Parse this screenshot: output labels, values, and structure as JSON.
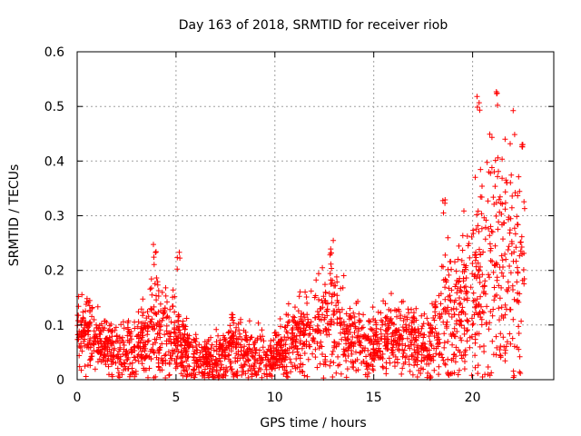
{
  "chart_data": {
    "type": "scatter",
    "title": "Day 163 of 2018, SRMTID for receiver riob",
    "xlabel": "GPS time / hours",
    "ylabel": "SRMTID / TECUs",
    "xlim": [
      0,
      24.5
    ],
    "ylim": [
      0,
      0.6
    ],
    "x_ticks": [
      "0",
      "5",
      "10",
      "15",
      "20"
    ],
    "y_ticks": [
      "0",
      "0.1",
      "0.2",
      "0.3",
      "0.4",
      "0.5",
      "0.6"
    ],
    "grid": true,
    "marker": "+",
    "series_color": "#ff0000",
    "x_range_of_points": [
      0,
      23.0
    ],
    "approx_envelope": [
      {
        "t": 0.0,
        "median": 0.08,
        "spread": 0.05
      },
      {
        "t": 0.5,
        "median": 0.09,
        "spread": 0.06
      },
      {
        "t": 1.0,
        "median": 0.07,
        "spread": 0.04
      },
      {
        "t": 2.0,
        "median": 0.05,
        "spread": 0.04
      },
      {
        "t": 3.0,
        "median": 0.06,
        "spread": 0.05
      },
      {
        "t": 4.0,
        "median": 0.09,
        "spread": 0.08
      },
      {
        "t": 5.0,
        "median": 0.08,
        "spread": 0.07
      },
      {
        "t": 6.0,
        "median": 0.04,
        "spread": 0.03
      },
      {
        "t": 7.0,
        "median": 0.035,
        "spread": 0.03
      },
      {
        "t": 8.0,
        "median": 0.06,
        "spread": 0.05
      },
      {
        "t": 9.0,
        "median": 0.04,
        "spread": 0.04
      },
      {
        "t": 10.0,
        "median": 0.04,
        "spread": 0.04
      },
      {
        "t": 11.0,
        "median": 0.07,
        "spread": 0.05
      },
      {
        "t": 12.0,
        "median": 0.09,
        "spread": 0.06
      },
      {
        "t": 13.0,
        "median": 0.13,
        "spread": 0.1
      },
      {
        "t": 14.0,
        "median": 0.08,
        "spread": 0.05
      },
      {
        "t": 15.0,
        "median": 0.06,
        "spread": 0.05
      },
      {
        "t": 16.0,
        "median": 0.08,
        "spread": 0.05
      },
      {
        "t": 17.0,
        "median": 0.07,
        "spread": 0.05
      },
      {
        "t": 18.0,
        "median": 0.06,
        "spread": 0.05
      },
      {
        "t": 19.0,
        "median": 0.12,
        "spread": 0.1
      },
      {
        "t": 20.0,
        "median": 0.14,
        "spread": 0.12
      },
      {
        "t": 21.0,
        "median": 0.2,
        "spread": 0.18
      },
      {
        "t": 22.0,
        "median": 0.22,
        "spread": 0.2
      },
      {
        "t": 23.0,
        "median": 0.2,
        "spread": 0.18
      }
    ],
    "peaks": [
      {
        "x": 4.0,
        "y": 0.26
      },
      {
        "x": 5.2,
        "y": 0.24
      },
      {
        "x": 13.0,
        "y": 0.25
      },
      {
        "x": 18.8,
        "y": 0.34
      },
      {
        "x": 20.6,
        "y": 0.53
      },
      {
        "x": 21.6,
        "y": 0.54
      },
      {
        "x": 22.9,
        "y": 0.45
      }
    ]
  }
}
